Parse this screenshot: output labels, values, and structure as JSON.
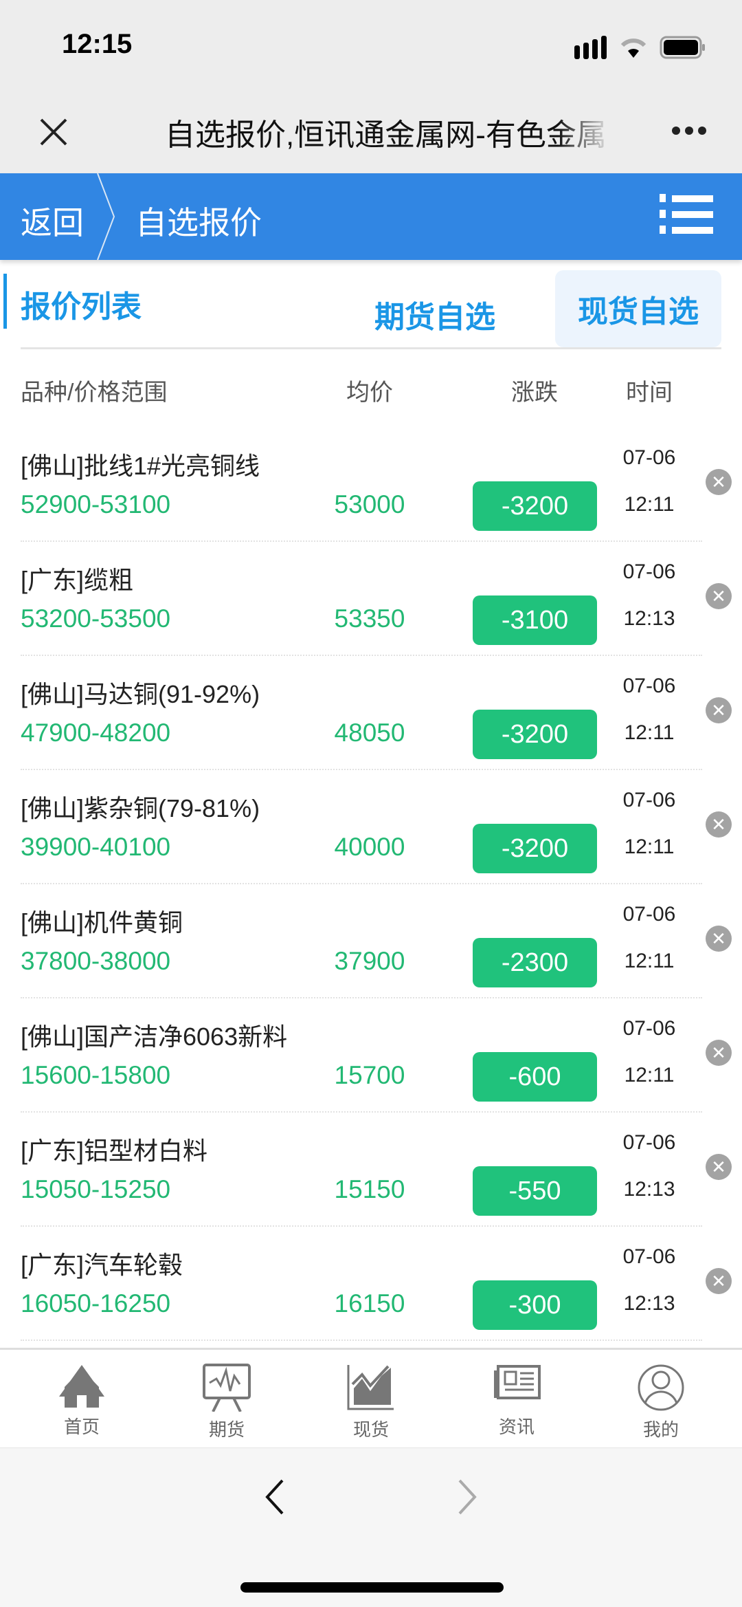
{
  "status_bar": {
    "time": "12:15"
  },
  "nav": {
    "title": "自选报价,恒讯通金属网-有色金属"
  },
  "header": {
    "back": "返回",
    "title": "自选报价"
  },
  "tabs": {
    "section": "报价列表",
    "futures": "期货自选",
    "spot": "现货自选",
    "active": "spot"
  },
  "columns": [
    "品种/价格范围",
    "均价",
    "涨跌",
    "时间"
  ],
  "colors": {
    "accent": "#3186e3",
    "green": "#20c27c",
    "tab": "#1a96e6"
  },
  "rows": [
    {
      "name": "[佛山]批线1#光亮铜线",
      "range": "52900-53100",
      "avg": "53000",
      "change": "-3200",
      "date": "07-06",
      "time": "12:11"
    },
    {
      "name": "[广东]缆粗",
      "range": "53200-53500",
      "avg": "53350",
      "change": "-3100",
      "date": "07-06",
      "time": "12:13"
    },
    {
      "name": "[佛山]马达铜(91-92%)",
      "range": "47900-48200",
      "avg": "48050",
      "change": "-3200",
      "date": "07-06",
      "time": "12:11"
    },
    {
      "name": "[佛山]紫杂铜(79-81%)",
      "range": "39900-40100",
      "avg": "40000",
      "change": "-3200",
      "date": "07-06",
      "time": "12:11"
    },
    {
      "name": "[佛山]机件黄铜",
      "range": "37800-38000",
      "avg": "37900",
      "change": "-2300",
      "date": "07-06",
      "time": "12:11"
    },
    {
      "name": "[佛山]国产洁净6063新料",
      "range": "15600-15800",
      "avg": "15700",
      "change": "-600",
      "date": "07-06",
      "time": "12:11"
    },
    {
      "name": "[广东]铝型材白料",
      "range": "15050-15250",
      "avg": "15150",
      "change": "-550",
      "date": "07-06",
      "time": "12:13"
    },
    {
      "name": "[广东]汽车轮毂",
      "range": "16050-16250",
      "avg": "16150",
      "change": "-300",
      "date": "07-06",
      "time": "12:13"
    }
  ],
  "tabbar": [
    {
      "label": "首页",
      "icon": "home-icon"
    },
    {
      "label": "期货",
      "icon": "futures-chart-icon"
    },
    {
      "label": "现货",
      "icon": "spot-chart-icon"
    },
    {
      "label": "资讯",
      "icon": "news-icon"
    },
    {
      "label": "我的",
      "icon": "user-icon"
    }
  ]
}
